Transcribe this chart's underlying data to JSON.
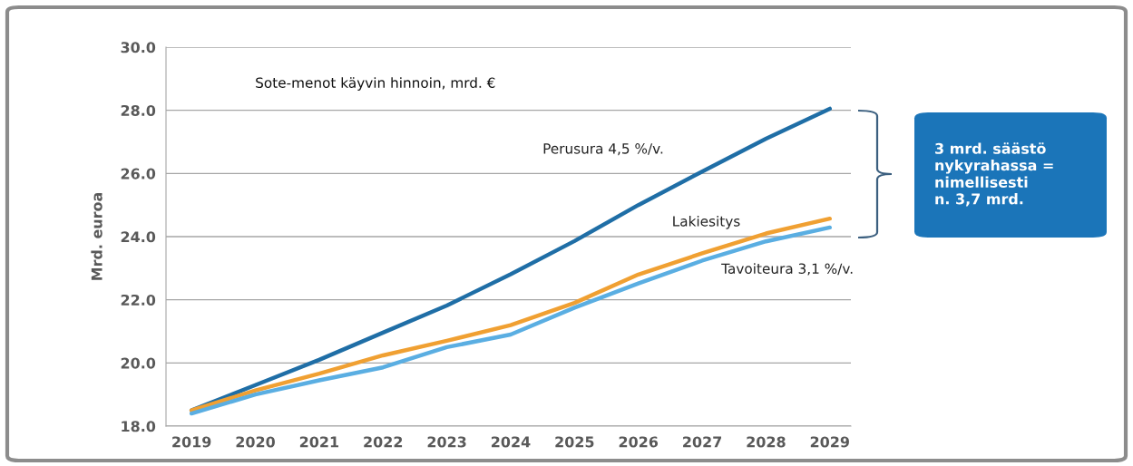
{
  "chart_data": {
    "type": "line",
    "title": "Sote-menot käyvin hinnoin, mrd. €",
    "ylabel": "Mrd. euroa",
    "categories": [
      "2019",
      "2020",
      "2021",
      "2022",
      "2023",
      "2024",
      "2025",
      "2026",
      "2027",
      "2028",
      "2029"
    ],
    "series": [
      {
        "name": "Perusura 4,5 %/v.",
        "color": "#1f6ea6",
        "values": [
          18.5,
          19.3,
          20.1,
          20.96,
          21.82,
          22.81,
          23.86,
          25.0,
          26.06,
          27.1,
          28.05
        ]
      },
      {
        "name": "Lakiesitys",
        "color": "#f0a032",
        "values": [
          18.5,
          19.13,
          19.66,
          20.24,
          20.7,
          21.2,
          21.9,
          22.8,
          23.47,
          24.1,
          24.57
        ]
      },
      {
        "name": "Tavoiteura 3,1 %/v.",
        "color": "#5aaee2",
        "values": [
          18.4,
          19.0,
          19.45,
          19.86,
          20.5,
          20.9,
          21.75,
          22.52,
          23.24,
          23.85,
          24.29
        ]
      }
    ],
    "ylim": [
      18.0,
      30.0
    ],
    "yticks": [
      {
        "value": 18,
        "label": "18.0"
      },
      {
        "value": 20,
        "label": "20.0"
      },
      {
        "value": 22,
        "label": "22.0"
      },
      {
        "value": 24,
        "label": "24.0"
      },
      {
        "value": 26,
        "label": "26.0"
      },
      {
        "value": 28,
        "label": "28.0"
      },
      {
        "value": 30,
        "label": "30.0"
      }
    ],
    "grid": "y",
    "legend": false,
    "marker": "none",
    "line_style": "solid",
    "annotations": [
      "3 mrd. säästö\nnykyrahassa =\nnimellisesti\nn. 3,7 mrd."
    ]
  }
}
